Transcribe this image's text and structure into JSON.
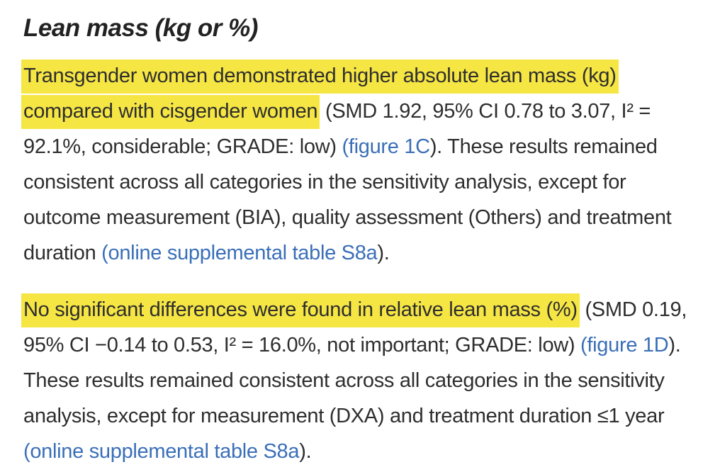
{
  "page": {
    "background_color": "#ffffff",
    "text_color": "#2e2e2e",
    "highlight_color": "#f6e644",
    "link_color": "#3a6fb8"
  },
  "heading": "Lean mass (kg or %)",
  "paragraphs": [
    {
      "segments": [
        {
          "type": "highlight",
          "text": "Transgender women demonstrated higher absolute lean mass (kg) compared with cisgender women"
        },
        {
          "type": "text",
          "text": " (SMD 1.92, 95% CI 0.78 to 3.07, I² = 92.1%, considerable; GRADE: low) "
        },
        {
          "type": "link",
          "text": "(figure 1C"
        },
        {
          "type": "text",
          "text": "). These results remained consistent across all categories in the sensitivity analysis, except for outcome measurement (BIA), quality assessment (Others) and treatment duration "
        },
        {
          "type": "link",
          "text": "(online supplemental table S8a"
        },
        {
          "type": "text",
          "text": ")."
        }
      ]
    },
    {
      "segments": [
        {
          "type": "highlight",
          "text": "No significant differences were found in relative lean mass (%)"
        },
        {
          "type": "text",
          "text": " (SMD 0.19, 95% CI −0.14 to 0.53, I² = 16.0%, not important; GRADE: low) "
        },
        {
          "type": "link",
          "text": "(figure 1D"
        },
        {
          "type": "text",
          "text": "). These results remained consistent across all categories in the sensitivity analysis, except for measurement (DXA) and treatment duration ≤1 year "
        },
        {
          "type": "link",
          "text": "(online supplemental table S8a"
        },
        {
          "type": "text",
          "text": ")."
        }
      ]
    }
  ]
}
